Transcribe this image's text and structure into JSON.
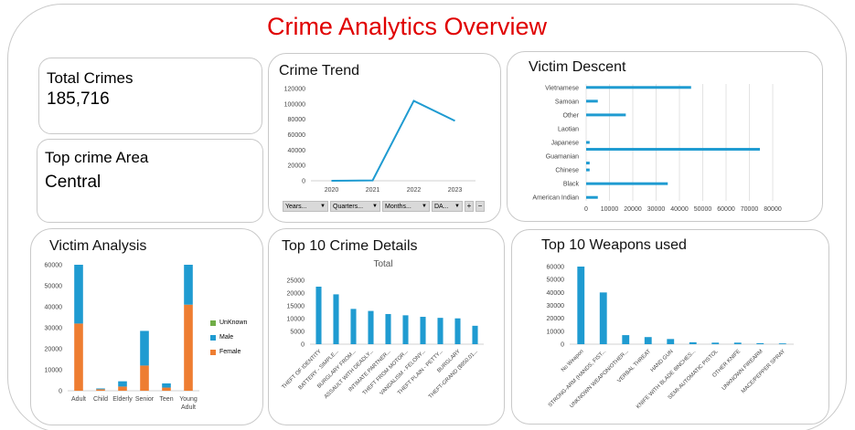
{
  "dashboard": {
    "title": "Crime Analytics Overview",
    "total_crimes": {
      "label": "Total Crimes",
      "value": "185,716"
    },
    "top_area": {
      "label": "Top crime Area",
      "value": "Central"
    }
  },
  "colors": {
    "blue": "#1f9bd1",
    "orange": "#ee7d31",
    "green": "#70ad47",
    "title_red": "#e00000"
  },
  "filters": [
    {
      "label": "Years...",
      "icon": "dropdown-arrow-icon"
    },
    {
      "label": "Quarters...",
      "icon": "dropdown-arrow-icon"
    },
    {
      "label": "Months...",
      "icon": "dropdown-arrow-icon"
    },
    {
      "label": "DA...",
      "icon": "dropdown-arrow-icon"
    }
  ],
  "filter_buttons": [
    "+",
    "−"
  ],
  "chart_data": [
    {
      "id": "crime_trend",
      "type": "line",
      "title": "Crime Trend",
      "categories": [
        "2020",
        "2021",
        "2022",
        "2023"
      ],
      "values": [
        0,
        500,
        104000,
        78000
      ],
      "ylim": [
        0,
        120000
      ],
      "yticks": [
        "0",
        "20000",
        "40000",
        "60000",
        "80000",
        "100000",
        "120000"
      ],
      "grid": false
    },
    {
      "id": "victim_descent",
      "type": "bar",
      "orientation": "horizontal",
      "title": "Victim Descent",
      "categories": [
        "American Indian",
        "",
        "Black",
        "",
        "Chinese",
        "",
        "Guamanian",
        "",
        "Japanese",
        "",
        "Laotian",
        "",
        "Other",
        "",
        "Samoan",
        "",
        "Vietnamese"
      ],
      "values": [
        5000,
        0,
        35000,
        0,
        1500,
        1500,
        0,
        74500,
        1500,
        0,
        0,
        0,
        17000,
        0,
        5000,
        0,
        45000
      ],
      "xlim": [
        0,
        80000
      ],
      "xticks": [
        "0",
        "10000",
        "20000",
        "30000",
        "40000",
        "50000",
        "60000",
        "70000",
        "80000"
      ],
      "grid": true
    },
    {
      "id": "victim_analysis",
      "type": "bar",
      "stacked": true,
      "title": "Victim Analysis",
      "categories": [
        "Adult",
        "Child",
        "Elderly",
        "Senior",
        "Teen",
        "Young Adult"
      ],
      "series": [
        {
          "name": "Female",
          "color": "#ee7d31",
          "values": [
            32000,
            700,
            2000,
            12000,
            1500,
            41000
          ]
        },
        {
          "name": "Male",
          "color": "#1f9bd1",
          "values": [
            28000,
            400,
            2500,
            16500,
            2000,
            19000
          ]
        },
        {
          "name": "UnKnown",
          "color": "#70ad47",
          "values": [
            0,
            0,
            0,
            0,
            0,
            0
          ]
        }
      ],
      "legend_order": [
        "UnKnown",
        "Male",
        "Female"
      ],
      "ylim": [
        0,
        60000
      ],
      "yticks": [
        "0",
        "10000",
        "20000",
        "30000",
        "40000",
        "50000",
        "60000"
      ]
    },
    {
      "id": "top10_crime",
      "type": "bar",
      "title": "Top 10 Crime Details",
      "subtitle": "Total",
      "categories": [
        "THEFT OF IDENTITY",
        "BATTERY - SIMPLE...",
        "BURGLARY FROM...",
        "ASSAULT WITH DEADLY...",
        "INTIMATE PARTNER...",
        "THEFT FROM MOTOR...",
        "VANDALISM - FELONY...",
        "THEFT PLAIN - PETTY...",
        "BURGLARY",
        "THEFT-GRAND ($950.01..."
      ],
      "values": [
        22500,
        19500,
        13800,
        13000,
        11800,
        11300,
        10700,
        10300,
        10100,
        7200
      ],
      "ylim": [
        0,
        25000
      ],
      "yticks": [
        "0",
        "5000",
        "10000",
        "15000",
        "20000",
        "25000"
      ]
    },
    {
      "id": "top10_weapons",
      "type": "bar",
      "title": "Top 10 Weapons used",
      "categories": [
        "No Weapon",
        "STRONG-ARM (HANDS, FIST...",
        "UNKNOWN WEAPON/OTHER...",
        "VERBAL THREAT",
        "HAND GUN",
        "KNIFE WITH BLADE 6INCHES...",
        "SEMI-AUTOMATIC PISTOL",
        "OTHER KNIFE",
        "UNKNOWN FIREARM",
        "MACE/PEPPER SPRAY"
      ],
      "values": [
        60000,
        40000,
        7000,
        5500,
        4000,
        1500,
        1200,
        1200,
        800,
        600
      ],
      "ylim": [
        0,
        60000
      ],
      "yticks": [
        "0",
        "10000",
        "20000",
        "30000",
        "40000",
        "50000",
        "60000"
      ]
    }
  ]
}
